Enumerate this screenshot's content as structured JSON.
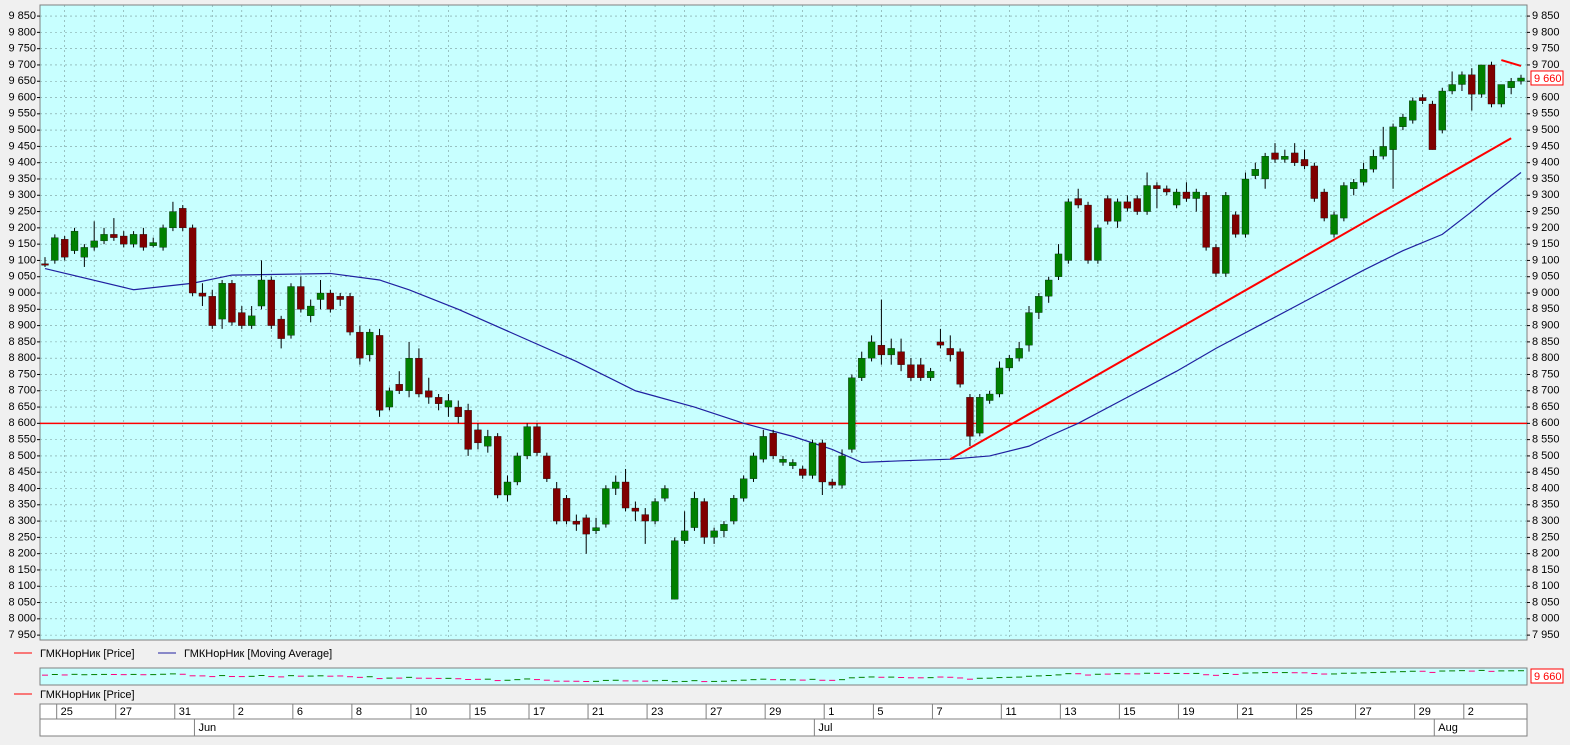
{
  "chart_data": {
    "type": "candlestick",
    "up_color": "#008000",
    "down_color": "#800000",
    "background": "#c8ffff",
    "grid": true,
    "ylim": [
      7935,
      9884
    ],
    "yticks": [
      {
        "value": 7950,
        "label": "7 950"
      },
      {
        "value": 8000,
        "label": "8 000"
      },
      {
        "value": 8050,
        "label": "8 050"
      },
      {
        "value": 8100,
        "label": "8 100"
      },
      {
        "value": 8150,
        "label": "8 150"
      },
      {
        "value": 8200,
        "label": "8 200"
      },
      {
        "value": 8250,
        "label": "8 250"
      },
      {
        "value": 8300,
        "label": "8 300"
      },
      {
        "value": 8350,
        "label": "8 350"
      },
      {
        "value": 8400,
        "label": "8 400"
      },
      {
        "value": 8450,
        "label": "8 450"
      },
      {
        "value": 8500,
        "label": "8 500"
      },
      {
        "value": 8550,
        "label": "8 550"
      },
      {
        "value": 8600,
        "label": "8 600"
      },
      {
        "value": 8650,
        "label": "8 650"
      },
      {
        "value": 8700,
        "label": "8 700"
      },
      {
        "value": 8750,
        "label": "8 750"
      },
      {
        "value": 8800,
        "label": "8 800"
      },
      {
        "value": 8850,
        "label": "8 850"
      },
      {
        "value": 8900,
        "label": "8 900"
      },
      {
        "value": 8950,
        "label": "8 950"
      },
      {
        "value": 9000,
        "label": "9 000"
      },
      {
        "value": 9050,
        "label": "9 050"
      },
      {
        "value": 9100,
        "label": "9 100"
      },
      {
        "value": 9150,
        "label": "9 150"
      },
      {
        "value": 9200,
        "label": "9 200"
      },
      {
        "value": 9250,
        "label": "9 250"
      },
      {
        "value": 9300,
        "label": "9 300"
      },
      {
        "value": 9350,
        "label": "9 350"
      },
      {
        "value": 9400,
        "label": "9 400"
      },
      {
        "value": 9450,
        "label": "9 450"
      },
      {
        "value": 9500,
        "label": "9 500"
      },
      {
        "value": 9550,
        "label": "9 550"
      },
      {
        "value": 9600,
        "label": "9 600"
      },
      {
        "value": 9650,
        "label": "9 650"
      },
      {
        "value": 9700,
        "label": "9 700"
      },
      {
        "value": 9750,
        "label": "9 750"
      },
      {
        "value": 9800,
        "label": "9 800"
      },
      {
        "value": 9850,
        "label": "9 850"
      }
    ],
    "categories": [
      null,
      null,
      "25",
      null,
      null,
      null,
      null,
      null,
      "27",
      null,
      null,
      null,
      null,
      null,
      "31",
      null,
      null,
      null,
      null,
      null,
      "2",
      null,
      null,
      null,
      null,
      null,
      "6",
      null,
      null,
      null,
      null,
      null,
      "8",
      null,
      null,
      null,
      null,
      null,
      "10",
      null,
      null,
      null,
      null,
      null,
      "15",
      null,
      null,
      null,
      null,
      null,
      "17",
      null,
      null,
      null,
      null,
      null,
      "21",
      null,
      null,
      null,
      null,
      null,
      "23",
      null,
      null,
      null,
      null,
      null,
      "27",
      null,
      null,
      null,
      null,
      null,
      "29",
      null,
      null,
      null,
      null,
      null,
      "1",
      null,
      null,
      null,
      null,
      "5",
      null,
      null,
      null,
      null,
      null,
      "7",
      null,
      null,
      null,
      null,
      null,
      null,
      "11",
      null,
      null,
      null,
      null,
      null,
      "13",
      null,
      null,
      null,
      null,
      null,
      "15",
      null,
      null,
      null,
      null,
      null,
      "19",
      null,
      null,
      null,
      null,
      null,
      "21",
      null,
      null,
      null,
      null,
      null,
      "25",
      null,
      null,
      null,
      null,
      null,
      "27",
      null,
      null,
      null,
      null,
      null,
      "29",
      null,
      null,
      null,
      null,
      "2",
      null,
      null,
      null,
      null,
      null
    ],
    "months": [
      null,
      null,
      null,
      null,
      null,
      null,
      null,
      null,
      null,
      null,
      null,
      null,
      null,
      null,
      null,
      null,
      "Jun",
      null,
      null,
      null,
      null,
      null,
      null,
      null,
      null,
      null,
      null,
      null,
      null,
      null,
      null,
      null,
      null,
      null,
      null,
      null,
      null,
      null,
      null,
      null,
      null,
      null,
      null,
      null,
      null,
      null,
      null,
      null,
      null,
      null,
      null,
      null,
      null,
      null,
      null,
      null,
      null,
      null,
      null,
      null,
      null,
      null,
      null,
      null,
      null,
      null,
      null,
      null,
      null,
      null,
      null,
      null,
      null,
      null,
      null,
      null,
      null,
      null,
      null,
      "Jul",
      null,
      null,
      null,
      null,
      null,
      null,
      null,
      null,
      null,
      null,
      null,
      null,
      null,
      null,
      null,
      null,
      null,
      null,
      null,
      null,
      null,
      null,
      null,
      null,
      null,
      null,
      null,
      null,
      null,
      null,
      null,
      null,
      null,
      null,
      null,
      null,
      null,
      null,
      null,
      null,
      null,
      null,
      null,
      null,
      null,
      null,
      null,
      null,
      null,
      null,
      null,
      null,
      null,
      null,
      null,
      null,
      null,
      null,
      null,
      null,
      null,
      null,
      "Aug",
      null,
      null,
      null,
      null,
      null,
      null,
      null,
      null
    ],
    "candles": [
      [
        9090,
        9110,
        9080,
        9085
      ],
      [
        9100,
        9180,
        9090,
        9170
      ],
      [
        9165,
        9175,
        9100,
        9110
      ],
      [
        9130,
        9200,
        9120,
        9190
      ],
      [
        9110,
        9150,
        9080,
        9140
      ],
      [
        9140,
        9220,
        9130,
        9160
      ],
      [
        9160,
        9200,
        9150,
        9180
      ],
      [
        9180,
        9230,
        9160,
        9170
      ],
      [
        9175,
        9190,
        9140,
        9150
      ],
      [
        9150,
        9190,
        9140,
        9180
      ],
      [
        9180,
        9200,
        9130,
        9140
      ],
      [
        9145,
        9170,
        9140,
        9155
      ],
      [
        9140,
        9210,
        9130,
        9200
      ],
      [
        9200,
        9280,
        9190,
        9250
      ],
      [
        9260,
        9270,
        9190,
        9200
      ],
      [
        9200,
        9210,
        8990,
        9000
      ],
      [
        9000,
        9030,
        8960,
        8990
      ],
      [
        8990,
        9010,
        8890,
        8900
      ],
      [
        8920,
        9040,
        8890,
        9030
      ],
      [
        9030,
        9040,
        8900,
        8910
      ],
      [
        8940,
        8960,
        8890,
        8900
      ],
      [
        8900,
        8960,
        8890,
        8930
      ],
      [
        8960,
        9100,
        8950,
        9040
      ],
      [
        9040,
        9050,
        8890,
        8900
      ],
      [
        8920,
        8930,
        8830,
        8860
      ],
      [
        8870,
        9030,
        8860,
        9020
      ],
      [
        9020,
        9050,
        8940,
        8950
      ],
      [
        8930,
        8980,
        8910,
        8960
      ],
      [
        8980,
        9040,
        8950,
        9000
      ],
      [
        9000,
        9010,
        8940,
        8950
      ],
      [
        8990,
        9000,
        8960,
        8980
      ],
      [
        8990,
        9000,
        8870,
        8880
      ],
      [
        8880,
        8900,
        8780,
        8800
      ],
      [
        8810,
        8890,
        8790,
        8880
      ],
      [
        8870,
        8890,
        8620,
        8640
      ],
      [
        8650,
        8710,
        8640,
        8700
      ],
      [
        8720,
        8760,
        8690,
        8700
      ],
      [
        8700,
        8850,
        8680,
        8800
      ],
      [
        8800,
        8830,
        8680,
        8690
      ],
      [
        8700,
        8740,
        8660,
        8680
      ],
      [
        8680,
        8690,
        8640,
        8660
      ],
      [
        8650,
        8690,
        8620,
        8670
      ],
      [
        8650,
        8670,
        8600,
        8620
      ],
      [
        8640,
        8660,
        8500,
        8520
      ],
      [
        8580,
        8600,
        8520,
        8540
      ],
      [
        8530,
        8580,
        8510,
        8560
      ],
      [
        8560,
        8570,
        8370,
        8380
      ],
      [
        8380,
        8440,
        8360,
        8420
      ],
      [
        8420,
        8510,
        8410,
        8500
      ],
      [
        8500,
        8600,
        8490,
        8590
      ],
      [
        8590,
        8600,
        8500,
        8510
      ],
      [
        8500,
        8510,
        8420,
        8430
      ],
      [
        8400,
        8420,
        8290,
        8300
      ],
      [
        8370,
        8380,
        8290,
        8300
      ],
      [
        8300,
        8320,
        8270,
        8290
      ],
      [
        8310,
        8320,
        8200,
        8260
      ],
      [
        8270,
        8310,
        8260,
        8280
      ],
      [
        8290,
        8410,
        8280,
        8400
      ],
      [
        8400,
        8440,
        8380,
        8420
      ],
      [
        8420,
        8460,
        8330,
        8340
      ],
      [
        8340,
        8360,
        8300,
        8330
      ],
      [
        8320,
        8340,
        8230,
        8300
      ],
      [
        8300,
        8370,
        8290,
        8360
      ],
      [
        8370,
        8410,
        8360,
        8400
      ],
      [
        8060,
        8250,
        8060,
        8240
      ],
      [
        8240,
        8330,
        8230,
        8270
      ],
      [
        8280,
        8390,
        8270,
        8370
      ],
      [
        8360,
        8370,
        8230,
        8250
      ],
      [
        8250,
        8280,
        8230,
        8270
      ],
      [
        8270,
        8300,
        8250,
        8290
      ],
      [
        8300,
        8380,
        8290,
        8370
      ],
      [
        8370,
        8440,
        8360,
        8430
      ],
      [
        8430,
        8510,
        8420,
        8500
      ],
      [
        8490,
        8580,
        8480,
        8560
      ],
      [
        8570,
        8580,
        8490,
        8500
      ],
      [
        8480,
        8500,
        8470,
        8490
      ],
      [
        8470,
        8490,
        8460,
        8480
      ],
      [
        8460,
        8470,
        8430,
        8440
      ],
      [
        8440,
        8550,
        8430,
        8540
      ],
      [
        8540,
        8550,
        8380,
        8420
      ],
      [
        8420,
        8430,
        8400,
        8410
      ],
      [
        8410,
        8520,
        8400,
        8500
      ],
      [
        8520,
        8750,
        8510,
        8740
      ],
      [
        8740,
        8820,
        8730,
        8800
      ],
      [
        8800,
        8870,
        8790,
        8850
      ],
      [
        8840,
        8980,
        8780,
        8810
      ],
      [
        8810,
        8860,
        8780,
        8830
      ],
      [
        8820,
        8860,
        8760,
        8780
      ],
      [
        8780,
        8800,
        8730,
        8740
      ],
      [
        8780,
        8800,
        8730,
        8740
      ],
      [
        8740,
        8770,
        8730,
        8760
      ],
      [
        8850,
        8890,
        8830,
        8840
      ],
      [
        8830,
        8870,
        8790,
        8810
      ],
      [
        8820,
        8830,
        8710,
        8720
      ],
      [
        8680,
        8690,
        8530,
        8560
      ],
      [
        8570,
        8690,
        8560,
        8680
      ],
      [
        8670,
        8700,
        8660,
        8690
      ],
      [
        8690,
        8790,
        8680,
        8770
      ],
      [
        8770,
        8810,
        8760,
        8800
      ],
      [
        8800,
        8850,
        8790,
        8830
      ],
      [
        8840,
        8960,
        8820,
        8940
      ],
      [
        8940,
        9000,
        8920,
        8990
      ],
      [
        8990,
        9050,
        8970,
        9040
      ],
      [
        9050,
        9150,
        9040,
        9120
      ],
      [
        9100,
        9290,
        9090,
        9280
      ],
      [
        9290,
        9320,
        9260,
        9270
      ],
      [
        9270,
        9280,
        9090,
        9100
      ],
      [
        9100,
        9210,
        9090,
        9200
      ],
      [
        9290,
        9300,
        9210,
        9220
      ],
      [
        9220,
        9290,
        9200,
        9280
      ],
      [
        9280,
        9300,
        9250,
        9260
      ],
      [
        9290,
        9300,
        9240,
        9250
      ],
      [
        9250,
        9370,
        9240,
        9330
      ],
      [
        9330,
        9340,
        9260,
        9320
      ],
      [
        9320,
        9330,
        9300,
        9310
      ],
      [
        9270,
        9320,
        9260,
        9310
      ],
      [
        9310,
        9340,
        9280,
        9290
      ],
      [
        9290,
        9320,
        9250,
        9310
      ],
      [
        9300,
        9310,
        9130,
        9140
      ],
      [
        9140,
        9150,
        9050,
        9060
      ],
      [
        9060,
        9310,
        9050,
        9300
      ],
      [
        9240,
        9250,
        9170,
        9180
      ],
      [
        9180,
        9370,
        9170,
        9350
      ],
      [
        9360,
        9400,
        9350,
        9380
      ],
      [
        9350,
        9430,
        9320,
        9420
      ],
      [
        9430,
        9460,
        9400,
        9410
      ],
      [
        9410,
        9440,
        9400,
        9420
      ],
      [
        9430,
        9460,
        9390,
        9400
      ],
      [
        9410,
        9440,
        9380,
        9390
      ],
      [
        9390,
        9400,
        9280,
        9290
      ],
      [
        9310,
        9320,
        9220,
        9230
      ],
      [
        9180,
        9250,
        9170,
        9240
      ],
      [
        9230,
        9340,
        9220,
        9330
      ],
      [
        9320,
        9350,
        9300,
        9340
      ],
      [
        9340,
        9400,
        9330,
        9380
      ],
      [
        9380,
        9440,
        9370,
        9420
      ],
      [
        9420,
        9510,
        9410,
        9450
      ],
      [
        9440,
        9520,
        9320,
        9510
      ],
      [
        9510,
        9550,
        9500,
        9540
      ],
      [
        9530,
        9600,
        9520,
        9590
      ],
      [
        9600,
        9610,
        9580,
        9590
      ],
      [
        9580,
        9590,
        9440,
        9440
      ],
      [
        9500,
        9630,
        9490,
        9620
      ],
      [
        9620,
        9680,
        9610,
        9640
      ],
      [
        9640,
        9680,
        9620,
        9670
      ],
      [
        9670,
        9690,
        9560,
        9610
      ],
      [
        9610,
        9700,
        9600,
        9700
      ],
      [
        9700,
        9710,
        9570,
        9580
      ],
      [
        9580,
        9640,
        9570,
        9640
      ],
      [
        9630,
        9660,
        9610,
        9650
      ],
      [
        9650,
        9670,
        9640,
        9660
      ]
    ],
    "series": [
      {
        "name": "ГМКНорНик [Price]",
        "color": "#ff0000"
      },
      {
        "name": "ГМКНорНик [Moving Average]",
        "color": "#2020a0",
        "x": [
          0,
          9,
          15,
          19,
          29,
          34,
          37,
          42,
          48,
          54,
          60,
          66,
          71,
          76,
          80,
          83,
          87,
          92,
          96,
          100,
          102,
          105,
          110,
          115,
          119,
          124,
          129,
          134,
          138,
          142,
          145,
          147,
          150
        ],
        "values": [
          9075,
          9010,
          9030,
          9055,
          9060,
          9040,
          9010,
          8950,
          8870,
          8790,
          8700,
          8650,
          8600,
          8560,
          8520,
          8480,
          8485,
          8490,
          8500,
          8530,
          8560,
          8600,
          8680,
          8760,
          8830,
          8910,
          8990,
          9070,
          9130,
          9180,
          9250,
          9300,
          9370
        ]
      }
    ],
    "hline": 8600,
    "trendlines": [
      {
        "color": "#ff0000",
        "x": [
          92,
          149
        ],
        "values": [
          8490,
          9475
        ]
      },
      {
        "color": "#ff0000",
        "x": [
          148,
          150
        ],
        "values": [
          9715,
          9697
        ]
      }
    ],
    "last_price": {
      "value": 9660,
      "label": "9 660"
    }
  }
}
